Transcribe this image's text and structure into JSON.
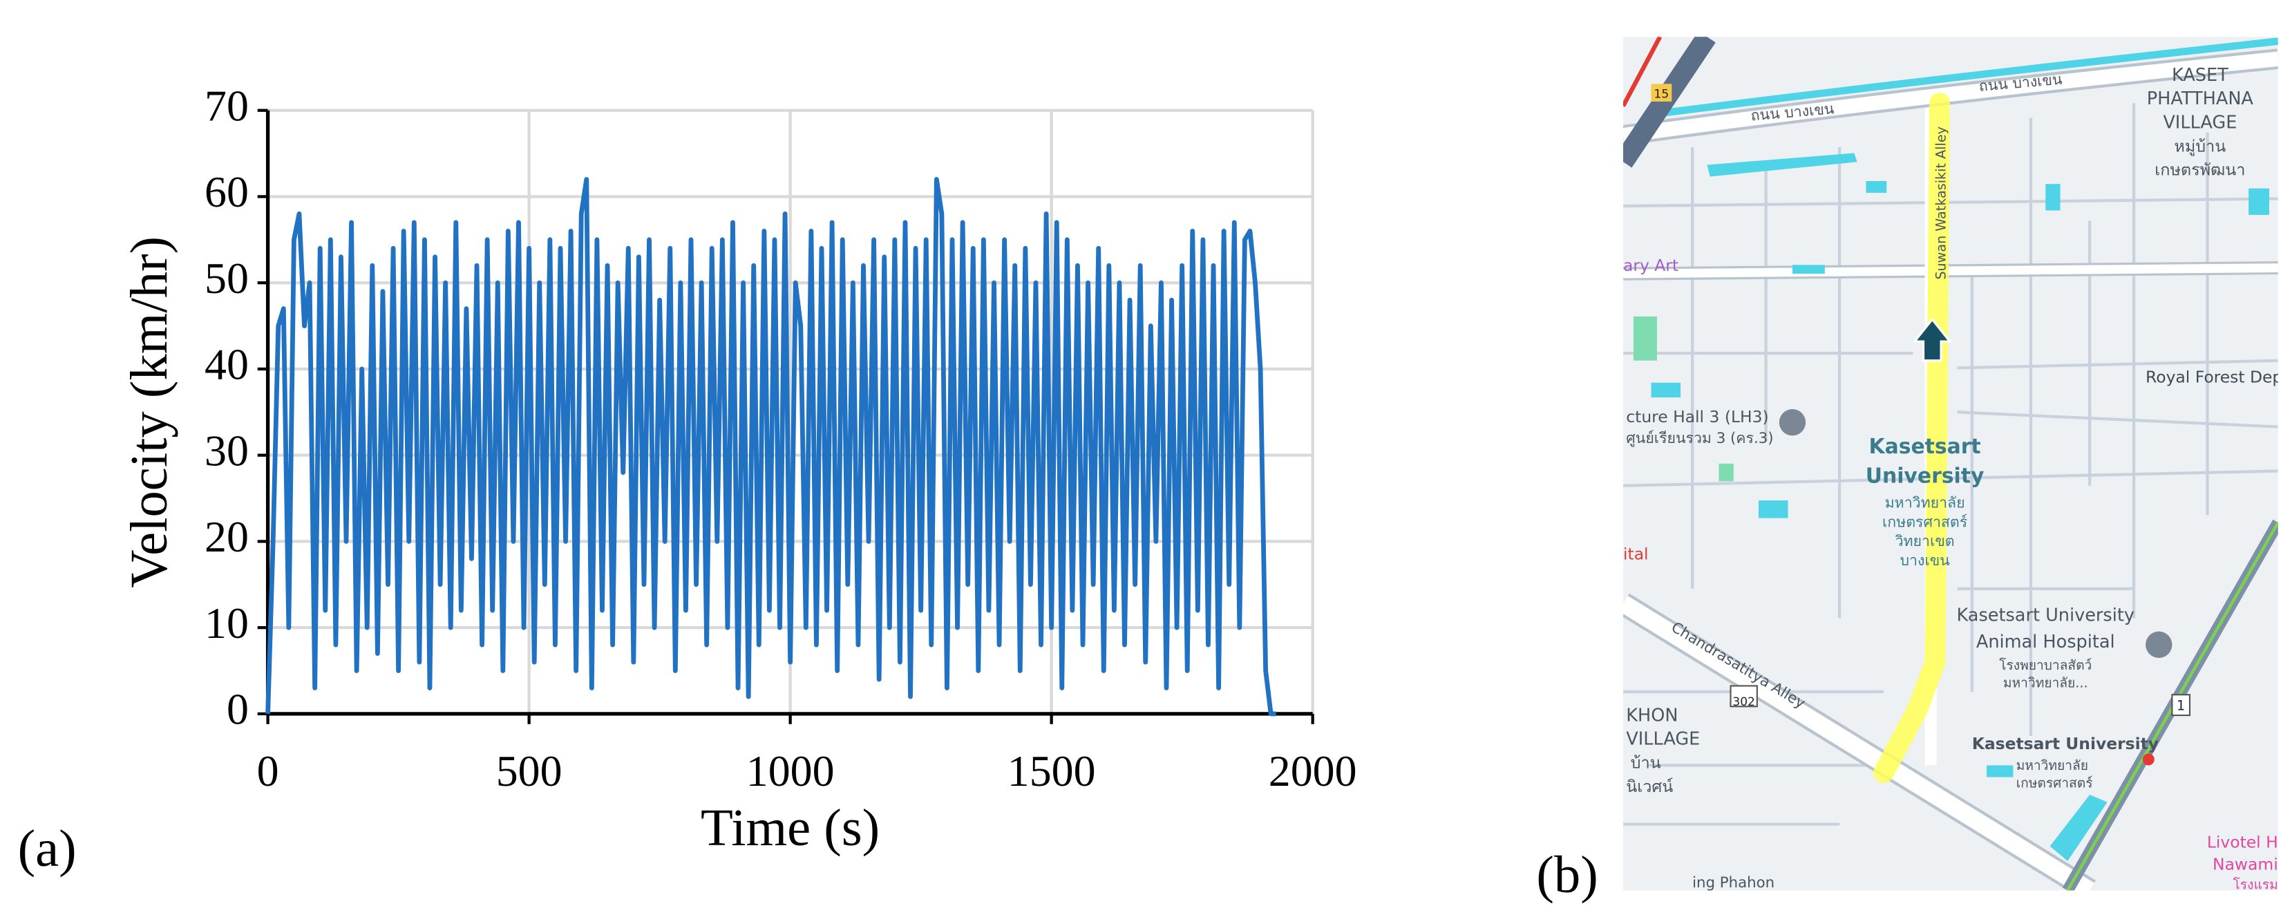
{
  "chart_data": {
    "type": "line",
    "y_label": "Velocity (km/hr)",
    "x_label": "Time (s)",
    "xlim": [
      0,
      2000
    ],
    "ylim": [
      0,
      70
    ],
    "xticks": [
      0,
      500,
      1000,
      1500,
      2000
    ],
    "yticks": [
      0,
      10,
      20,
      30,
      40,
      50,
      60,
      70
    ],
    "grid": true,
    "color": "#2272c3",
    "x": [
      0,
      10,
      20,
      30,
      40,
      50,
      60,
      70,
      80,
      90,
      100,
      110,
      120,
      130,
      140,
      150,
      160,
      170,
      180,
      190,
      200,
      210,
      220,
      230,
      240,
      250,
      260,
      270,
      280,
      290,
      300,
      310,
      320,
      330,
      340,
      350,
      360,
      370,
      380,
      390,
      400,
      410,
      420,
      430,
      440,
      450,
      460,
      470,
      480,
      490,
      500,
      510,
      520,
      530,
      540,
      550,
      560,
      570,
      580,
      590,
      600,
      610,
      620,
      630,
      640,
      650,
      660,
      670,
      680,
      690,
      700,
      710,
      720,
      730,
      740,
      750,
      760,
      770,
      780,
      790,
      800,
      810,
      820,
      830,
      840,
      850,
      860,
      870,
      880,
      890,
      900,
      910,
      920,
      930,
      940,
      950,
      960,
      970,
      980,
      990,
      1000,
      1010,
      1020,
      1030,
      1040,
      1050,
      1060,
      1070,
      1080,
      1090,
      1100,
      1110,
      1120,
      1130,
      1140,
      1150,
      1160,
      1170,
      1180,
      1190,
      1200,
      1210,
      1220,
      1230,
      1240,
      1250,
      1260,
      1270,
      1280,
      1290,
      1300,
      1310,
      1320,
      1330,
      1340,
      1350,
      1360,
      1370,
      1380,
      1390,
      1400,
      1410,
      1420,
      1430,
      1440,
      1450,
      1460,
      1470,
      1480,
      1490,
      1500,
      1510,
      1520,
      1530,
      1540,
      1550,
      1560,
      1570,
      1580,
      1590,
      1600,
      1610,
      1620,
      1630,
      1640,
      1650,
      1660,
      1670,
      1680,
      1690,
      1700,
      1710,
      1720,
      1730,
      1740,
      1750,
      1760,
      1770,
      1780,
      1790,
      1800,
      1810,
      1820,
      1830,
      1840,
      1850,
      1860,
      1870,
      1880,
      1890,
      1900,
      1910,
      1920,
      1930
    ],
    "values": [
      0,
      20,
      45,
      47,
      10,
      55,
      58,
      45,
      50,
      3,
      54,
      12,
      55,
      8,
      53,
      20,
      57,
      5,
      40,
      10,
      52,
      7,
      49,
      15,
      54,
      5,
      56,
      20,
      57,
      6,
      55,
      3,
      53,
      15,
      50,
      10,
      57,
      12,
      47,
      18,
      52,
      8,
      55,
      12,
      50,
      5,
      56,
      20,
      57,
      10,
      54,
      6,
      50,
      15,
      55,
      8,
      54,
      20,
      56,
      5,
      58,
      62,
      3,
      55,
      12,
      52,
      8,
      50,
      28,
      54,
      6,
      53,
      15,
      55,
      10,
      48,
      20,
      54,
      5,
      50,
      12,
      55,
      15,
      50,
      8,
      54,
      20,
      55,
      10,
      57,
      3,
      50,
      2,
      52,
      8,
      56,
      12,
      55,
      10,
      58,
      6,
      50,
      45,
      10,
      56,
      8,
      54,
      12,
      57,
      5,
      55,
      15,
      50,
      8,
      52,
      20,
      55,
      4,
      53,
      10,
      55,
      6,
      57,
      2,
      54,
      12,
      55,
      8,
      62,
      58,
      3,
      55,
      10,
      57,
      15,
      54,
      5,
      55,
      12,
      50,
      8,
      55,
      20,
      52,
      5,
      54,
      15,
      50,
      8,
      58,
      10,
      57,
      3,
      55,
      12,
      52,
      8,
      50,
      15,
      54,
      5,
      52,
      12,
      50,
      8,
      48,
      15,
      52,
      6,
      45,
      20,
      50,
      3,
      48,
      10,
      52,
      5,
      56,
      12,
      55,
      8,
      52,
      3,
      56,
      15,
      57,
      10,
      55,
      56,
      50,
      40,
      5,
      0,
      0
    ]
  },
  "panel_labels": [
    "(a)",
    "(b)"
  ],
  "map": {
    "labels": [
      "KASET",
      "PHATTHANA",
      "VILLAGE",
      "หมู่บ้าน",
      "เกษตรพัฒนา",
      "ถนน บางเขน",
      "ถนน บางเขน",
      "Suwan Watkasikit Alley",
      "ary Art",
      "Royal Forest Dep",
      "cture Hall 3 (LH3)",
      "ศูนย์เรียนรวม 3 (คร.3)",
      "Kasetsart",
      "University",
      "มหาวิทยาลัย",
      "เกษตรศาสตร์",
      "วิทยาเขต",
      "บางเขน",
      "ital",
      "Kasetsart University",
      "Animal Hospital",
      "โรงพยาบาลสัตว์",
      "มหาวิทยาลัย...",
      "Chandrasatitya Alley",
      "KHON",
      "VILLAGE",
      "บ้าน",
      "นิเวศน์",
      "Kasetsart University",
      "มหาวิทยาลัย",
      "เกษตรศาสตร์",
      "Livotel H",
      "Nawami",
      "โรงแรม",
      "302",
      "15",
      "1",
      "ing Phahon"
    ]
  }
}
